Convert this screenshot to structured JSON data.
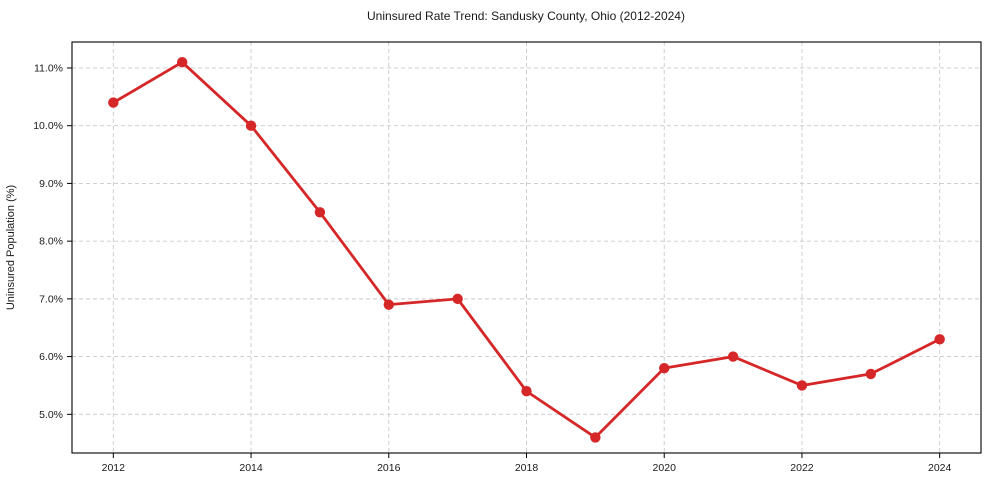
{
  "chart_data": {
    "type": "line",
    "title": "Uninsured Rate Trend: Sandusky County, Ohio (2012-2024)",
    "xlabel": "",
    "ylabel": "Uninsured Population (%)",
    "x": [
      2012,
      2013,
      2014,
      2015,
      2016,
      2017,
      2018,
      2019,
      2020,
      2021,
      2022,
      2023,
      2024
    ],
    "series": [
      {
        "name": "Uninsured Rate",
        "values": [
          10.4,
          11.1,
          10.0,
          8.5,
          6.9,
          7.0,
          5.4,
          4.6,
          5.8,
          6.0,
          5.5,
          5.7,
          6.3
        ]
      }
    ],
    "xtick_values": [
      2012,
      2014,
      2016,
      2018,
      2020,
      2022,
      2024
    ],
    "xtick_labels": [
      "2012",
      "2014",
      "2016",
      "2018",
      "2020",
      "2022",
      "2024"
    ],
    "ytick_values": [
      5,
      6,
      7,
      8,
      9,
      10,
      11
    ],
    "ytick_labels": [
      "5.0%",
      "6.0%",
      "7.0%",
      "8.0%",
      "9.0%",
      "10.0%",
      "11.0%"
    ],
    "xlim": [
      2011.4,
      2024.6
    ],
    "ylim": [
      4.33,
      11.45
    ],
    "grid": true,
    "grid_style": "dashed",
    "legend": "none",
    "colors": {
      "line": "#d62728",
      "marker": "#d62728",
      "grid": "#c9c9c9",
      "spine": "#000000",
      "background": "#ffffff"
    }
  }
}
